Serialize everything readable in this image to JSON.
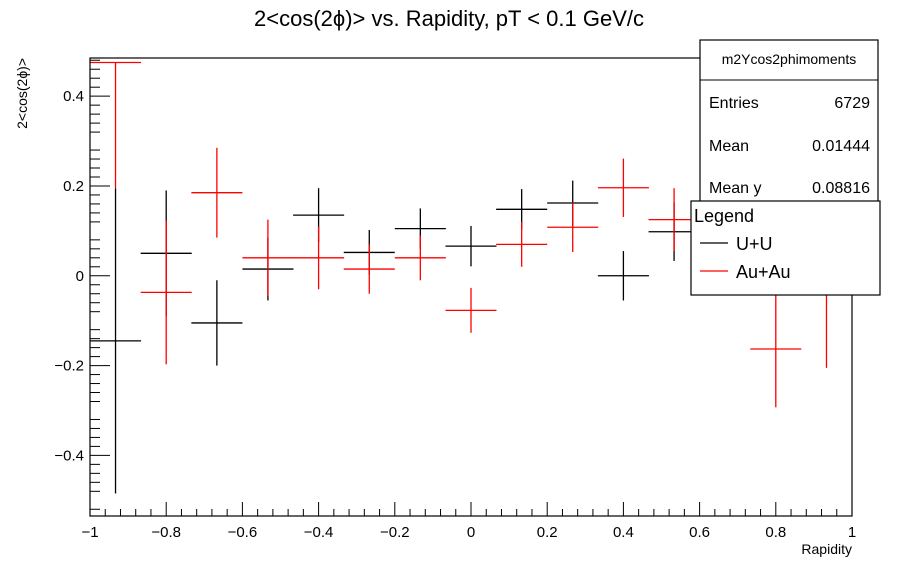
{
  "chart_data": {
    "type": "scatter",
    "title": "2<cos(2ϕ)> vs. Rapidity, pT < 0.1 GeV/c",
    "xlabel": "Rapidity",
    "ylabel": "2<cos(2ϕ)>",
    "xlim": [
      -1,
      1
    ],
    "ylim": [
      -0.535,
      0.485
    ],
    "xticks": [
      -1,
      -0.8,
      -0.6,
      -0.4,
      -0.2,
      0,
      0.2,
      0.4,
      0.6,
      0.8,
      1
    ],
    "xtick_labels": [
      "−1",
      "−0.8",
      "−0.6",
      "−0.4",
      "−0.2",
      "0",
      "0.2",
      "0.4",
      "0.6",
      "0.8",
      "1"
    ],
    "yticks": [
      -0.4,
      -0.2,
      0,
      0.2,
      0.4
    ],
    "ytick_labels": [
      "−0.4",
      "−0.2",
      "0",
      "0.2",
      "0.4"
    ],
    "grid": false,
    "series": [
      {
        "name": "U+U",
        "color": "#000000",
        "points": [
          {
            "x": -0.933,
            "xerr": 0.067,
            "y": -0.145,
            "yerr_low": 0.34,
            "yerr_high": 0.34
          },
          {
            "x": -0.8,
            "xerr": 0.067,
            "y": 0.05,
            "yerr_low": 0.14,
            "yerr_high": 0.14
          },
          {
            "x": -0.667,
            "xerr": 0.067,
            "y": -0.105,
            "yerr_low": 0.095,
            "yerr_high": 0.095
          },
          {
            "x": -0.533,
            "xerr": 0.067,
            "y": 0.015,
            "yerr_low": 0.07,
            "yerr_high": 0.07
          },
          {
            "x": -0.4,
            "xerr": 0.067,
            "y": 0.135,
            "yerr_low": 0.06,
            "yerr_high": 0.06
          },
          {
            "x": -0.267,
            "xerr": 0.067,
            "y": 0.052,
            "yerr_low": 0.05,
            "yerr_high": 0.05
          },
          {
            "x": -0.133,
            "xerr": 0.067,
            "y": 0.105,
            "yerr_low": 0.045,
            "yerr_high": 0.045
          },
          {
            "x": 0.0,
            "xerr": 0.067,
            "y": 0.066,
            "yerr_low": 0.045,
            "yerr_high": 0.045
          },
          {
            "x": 0.133,
            "xerr": 0.067,
            "y": 0.148,
            "yerr_low": 0.045,
            "yerr_high": 0.045
          },
          {
            "x": 0.267,
            "xerr": 0.067,
            "y": 0.162,
            "yerr_low": 0.05,
            "yerr_high": 0.05
          },
          {
            "x": 0.4,
            "xerr": 0.067,
            "y": 0.0,
            "yerr_low": 0.055,
            "yerr_high": 0.055
          },
          {
            "x": 0.533,
            "xerr": 0.067,
            "y": 0.098,
            "yerr_low": 0.065,
            "yerr_high": 0.065
          }
        ]
      },
      {
        "name": "Au+Au",
        "color": "#ff0000",
        "points": [
          {
            "x": -0.933,
            "xerr": 0.067,
            "y": 0.475,
            "yerr_low": 0.28,
            "yerr_high": 0.0
          },
          {
            "x": -0.8,
            "xerr": 0.067,
            "y": -0.037,
            "yerr_low": 0.16,
            "yerr_high": 0.16
          },
          {
            "x": -0.667,
            "xerr": 0.067,
            "y": 0.185,
            "yerr_low": 0.1,
            "yerr_high": 0.1
          },
          {
            "x": -0.533,
            "xerr": 0.067,
            "y": 0.04,
            "yerr_low": 0.085,
            "yerr_high": 0.085
          },
          {
            "x": -0.4,
            "xerr": 0.067,
            "y": 0.04,
            "yerr_low": 0.07,
            "yerr_high": 0.07
          },
          {
            "x": -0.267,
            "xerr": 0.067,
            "y": 0.015,
            "yerr_low": 0.055,
            "yerr_high": 0.055
          },
          {
            "x": -0.133,
            "xerr": 0.067,
            "y": 0.04,
            "yerr_low": 0.05,
            "yerr_high": 0.05
          },
          {
            "x": 0.0,
            "xerr": 0.067,
            "y": -0.077,
            "yerr_low": 0.05,
            "yerr_high": 0.05
          },
          {
            "x": 0.133,
            "xerr": 0.067,
            "y": 0.07,
            "yerr_low": 0.05,
            "yerr_high": 0.05
          },
          {
            "x": 0.267,
            "xerr": 0.067,
            "y": 0.108,
            "yerr_low": 0.055,
            "yerr_high": 0.055
          },
          {
            "x": 0.4,
            "xerr": 0.067,
            "y": 0.196,
            "yerr_low": 0.065,
            "yerr_high": 0.065
          },
          {
            "x": 0.533,
            "xerr": 0.067,
            "y": 0.125,
            "yerr_low": 0.07,
            "yerr_high": 0.07
          },
          {
            "x": 0.8,
            "xerr": 0.067,
            "y": -0.163,
            "yerr_low": 0.13,
            "yerr_high": 0.13
          },
          {
            "x": 0.933,
            "xerr": 0.067,
            "y": 0.03,
            "yerr_low": 0.235,
            "yerr_high": 0.235
          }
        ]
      }
    ],
    "legend_title": "Legend",
    "legend_position": "right",
    "stats_box": {
      "name": "m2Ycos2phimoments",
      "rows": [
        {
          "label": "Entries",
          "value": "6729"
        },
        {
          "label": "Mean",
          "value": "0.01444"
        },
        {
          "label": "Mean y",
          "value": "0.08816"
        }
      ]
    }
  }
}
